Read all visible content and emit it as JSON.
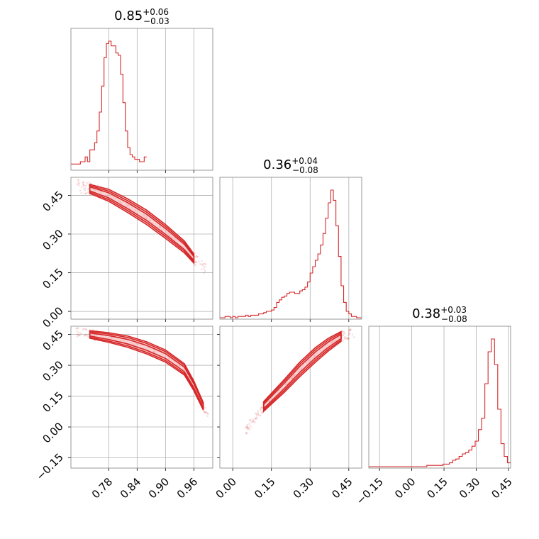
{
  "chart_data": {
    "type": "corner",
    "colors": {
      "line": "#d62728",
      "scatter": "#d62728",
      "contour_fill": "#f4b6b7",
      "grid": "#b0b0b0",
      "frame": "#808080"
    },
    "grid": true,
    "panels": [
      {
        "id": "hist-1",
        "type": "histogram",
        "row": 0,
        "col": 0,
        "title": {
          "main": "0.85",
          "sup": "+0.06",
          "sub": "−0.03"
        },
        "xlim": [
          0.7,
          1.0
        ],
        "xticks": [
          0.78,
          0.84,
          0.9,
          0.96
        ],
        "bins": [
          [
            0.7,
            0.02
          ],
          [
            0.705,
            0.02
          ],
          [
            0.71,
            0.02
          ],
          [
            0.715,
            0.02
          ],
          [
            0.72,
            0.03
          ],
          [
            0.725,
            0.03
          ],
          [
            0.73,
            0.05
          ],
          [
            0.735,
            0.03
          ],
          [
            0.74,
            0.08
          ],
          [
            0.745,
            0.08
          ],
          [
            0.75,
            0.11
          ],
          [
            0.755,
            0.16
          ],
          [
            0.76,
            0.24
          ],
          [
            0.765,
            0.35
          ],
          [
            0.77,
            0.47
          ],
          [
            0.775,
            0.53
          ],
          [
            0.78,
            0.54
          ],
          [
            0.785,
            0.52
          ],
          [
            0.79,
            0.52
          ],
          [
            0.795,
            0.49
          ],
          [
            0.8,
            0.48
          ],
          [
            0.805,
            0.4
          ],
          [
            0.81,
            0.28
          ],
          [
            0.815,
            0.16
          ],
          [
            0.82,
            0.09
          ],
          [
            0.825,
            0.06
          ],
          [
            0.83,
            0.05
          ],
          [
            0.835,
            0.04
          ],
          [
            0.84,
            0.04
          ],
          [
            0.845,
            0.03
          ],
          [
            0.85,
            0.03
          ],
          [
            0.855,
            0.05
          ]
        ]
      },
      {
        "id": "hist-2",
        "type": "histogram",
        "row": 1,
        "col": 1,
        "title": {
          "main": "0.36",
          "sup": "+0.04",
          "sub": "−0.08"
        },
        "xlim": [
          -0.05,
          0.5
        ],
        "xticks": [
          0.0,
          0.15,
          0.3,
          0.45
        ],
        "bins": [
          [
            -0.05,
            0.0
          ],
          [
            -0.04,
            0.0
          ],
          [
            -0.03,
            0.01
          ],
          [
            -0.02,
            0.01
          ],
          [
            -0.01,
            0.0
          ],
          [
            0.0,
            0.01
          ],
          [
            0.01,
            0.0
          ],
          [
            0.02,
            0.01
          ],
          [
            0.03,
            0.01
          ],
          [
            0.04,
            0.01
          ],
          [
            0.05,
            0.02
          ],
          [
            0.06,
            0.01
          ],
          [
            0.07,
            0.02
          ],
          [
            0.08,
            0.02
          ],
          [
            0.09,
            0.02
          ],
          [
            0.1,
            0.03
          ],
          [
            0.11,
            0.03
          ],
          [
            0.12,
            0.04
          ],
          [
            0.13,
            0.05
          ],
          [
            0.14,
            0.05
          ],
          [
            0.15,
            0.06
          ],
          [
            0.16,
            0.08
          ],
          [
            0.17,
            0.12
          ],
          [
            0.18,
            0.14
          ],
          [
            0.19,
            0.16
          ],
          [
            0.2,
            0.17
          ],
          [
            0.21,
            0.19
          ],
          [
            0.22,
            0.2
          ],
          [
            0.23,
            0.2
          ],
          [
            0.24,
            0.19
          ],
          [
            0.25,
            0.19
          ],
          [
            0.26,
            0.21
          ],
          [
            0.27,
            0.22
          ],
          [
            0.28,
            0.24
          ],
          [
            0.29,
            0.28
          ],
          [
            0.3,
            0.35
          ],
          [
            0.31,
            0.4
          ],
          [
            0.32,
            0.45
          ],
          [
            0.33,
            0.5
          ],
          [
            0.34,
            0.57
          ],
          [
            0.35,
            0.66
          ],
          [
            0.36,
            0.78
          ],
          [
            0.37,
            0.9
          ],
          [
            0.38,
            1.0
          ],
          [
            0.39,
            0.92
          ],
          [
            0.4,
            0.72
          ],
          [
            0.41,
            0.48
          ],
          [
            0.42,
            0.25
          ],
          [
            0.43,
            0.12
          ],
          [
            0.44,
            0.05
          ],
          [
            0.45,
            0.03
          ],
          [
            0.46,
            0.01
          ],
          [
            0.47,
            0.01
          ],
          [
            0.48,
            0.0
          ],
          [
            0.49,
            0.0
          ]
        ]
      },
      {
        "id": "hist-3",
        "type": "histogram",
        "row": 2,
        "col": 2,
        "title": {
          "main": "0.38",
          "sup": "+0.03",
          "sub": "−0.08"
        },
        "xlim": [
          -0.2,
          0.46
        ],
        "xticks": [
          -0.15,
          0.0,
          0.15,
          0.3,
          0.45
        ],
        "bins": [
          [
            -0.2,
            0.0
          ],
          [
            -0.185,
            0.0
          ],
          [
            -0.17,
            0.0
          ],
          [
            -0.155,
            0.0
          ],
          [
            -0.14,
            0.0
          ],
          [
            -0.125,
            0.0
          ],
          [
            -0.11,
            0.0
          ],
          [
            -0.095,
            0.0
          ],
          [
            -0.08,
            0.0
          ],
          [
            -0.065,
            0.0
          ],
          [
            -0.05,
            0.0
          ],
          [
            -0.035,
            0.0
          ],
          [
            -0.02,
            0.0
          ],
          [
            -0.005,
            0.0
          ],
          [
            0.01,
            0.0
          ],
          [
            0.025,
            0.0
          ],
          [
            0.04,
            0.0
          ],
          [
            0.055,
            0.0
          ],
          [
            0.07,
            0.01
          ],
          [
            0.085,
            0.01
          ],
          [
            0.1,
            0.01
          ],
          [
            0.115,
            0.01
          ],
          [
            0.13,
            0.01
          ],
          [
            0.145,
            0.02
          ],
          [
            0.16,
            0.02
          ],
          [
            0.175,
            0.03
          ],
          [
            0.19,
            0.05
          ],
          [
            0.205,
            0.06
          ],
          [
            0.22,
            0.08
          ],
          [
            0.235,
            0.1
          ],
          [
            0.25,
            0.11
          ],
          [
            0.265,
            0.13
          ],
          [
            0.28,
            0.16
          ],
          [
            0.295,
            0.2
          ],
          [
            0.31,
            0.29
          ],
          [
            0.325,
            0.38
          ],
          [
            0.34,
            0.65
          ],
          [
            0.355,
            0.9
          ],
          [
            0.37,
            1.0
          ],
          [
            0.385,
            0.8
          ],
          [
            0.4,
            0.45
          ],
          [
            0.415,
            0.18
          ],
          [
            0.43,
            0.08
          ],
          [
            0.445,
            0.03
          ]
        ]
      },
      {
        "id": "scatter-2-1",
        "type": "scatter2d",
        "row": 1,
        "col": 0,
        "xlim": [
          0.7,
          1.0
        ],
        "ylim": [
          -0.03,
          0.52
        ],
        "xticks": [
          0.78,
          0.84,
          0.9,
          0.96
        ],
        "yticks": [
          0.0,
          0.15,
          0.3,
          0.45
        ],
        "ridge": [
          [
            0.71,
            0.49
          ],
          [
            0.74,
            0.475
          ],
          [
            0.78,
            0.45
          ],
          [
            0.82,
            0.41
          ],
          [
            0.86,
            0.365
          ],
          [
            0.9,
            0.31
          ],
          [
            0.94,
            0.25
          ],
          [
            0.96,
            0.205
          ],
          [
            0.985,
            0.16
          ]
        ],
        "contour_half_widths": [
          0.012,
          0.02,
          0.028
        ]
      },
      {
        "id": "scatter-3-1",
        "type": "scatter2d",
        "row": 2,
        "col": 0,
        "xlim": [
          0.7,
          1.0
        ],
        "ylim": [
          -0.2,
          0.49
        ],
        "xticks": [
          0.78,
          0.84,
          0.9,
          0.96
        ],
        "yticks": [
          -0.15,
          0.0,
          0.15,
          0.3,
          0.45
        ],
        "ridge": [
          [
            0.71,
            0.46
          ],
          [
            0.74,
            0.45
          ],
          [
            0.78,
            0.435
          ],
          [
            0.82,
            0.415
          ],
          [
            0.86,
            0.385
          ],
          [
            0.9,
            0.345
          ],
          [
            0.94,
            0.28
          ],
          [
            0.96,
            0.2
          ],
          [
            0.98,
            0.1
          ],
          [
            0.99,
            0.05
          ]
        ],
        "contour_half_widths": [
          0.012,
          0.022,
          0.03
        ]
      },
      {
        "id": "scatter-3-2",
        "type": "scatter2d",
        "row": 2,
        "col": 1,
        "xlim": [
          -0.05,
          0.5
        ],
        "ylim": [
          -0.2,
          0.49
        ],
        "xticks": [
          0.0,
          0.15,
          0.3,
          0.45
        ],
        "yticks": [],
        "ridge": [
          [
            0.05,
            -0.02
          ],
          [
            0.12,
            0.1
          ],
          [
            0.2,
            0.2
          ],
          [
            0.26,
            0.28
          ],
          [
            0.32,
            0.35
          ],
          [
            0.37,
            0.4
          ],
          [
            0.42,
            0.44
          ],
          [
            0.47,
            0.46
          ]
        ],
        "contour_half_widths": [
          0.015,
          0.026,
          0.036
        ]
      }
    ]
  }
}
